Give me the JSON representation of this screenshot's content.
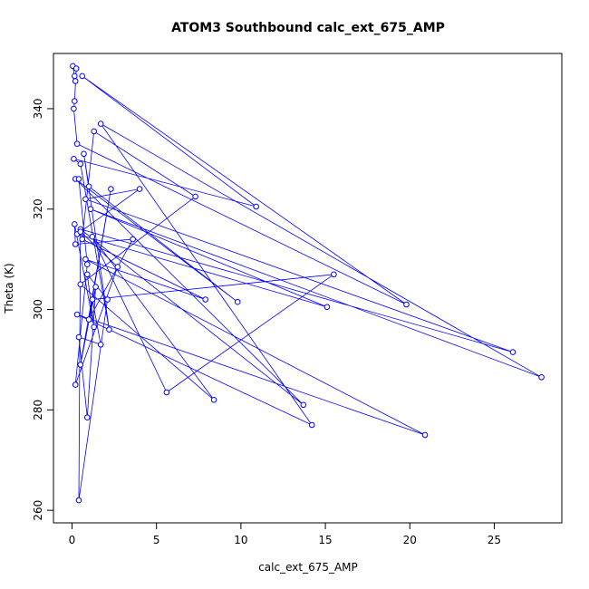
{
  "chart_data": {
    "type": "line",
    "title": "ATOM3 Southbound calc_ext_675_AMP",
    "xlabel": "calc_ext_675_AMP",
    "ylabel": "Theta (K)",
    "xlim": [
      -1.1,
      29.0
    ],
    "ylim": [
      257.5,
      351.0
    ],
    "xticks": [
      "0",
      "5",
      "10",
      "15",
      "20",
      "25"
    ],
    "yticks": [
      "260",
      "280",
      "300",
      "320",
      "340"
    ],
    "grid": false,
    "marker": "open-circle",
    "series_color": "#0000ff",
    "series": [
      {
        "x": [
          0.05,
          0.15,
          0.2,
          0.25,
          0.15,
          0.1,
          0.3,
          19.8,
          0.6,
          10.9,
          0.1,
          0.5,
          2.2,
          0.7,
          1.0,
          9.8,
          0.2,
          13.7,
          0.5,
          26.1,
          0.8,
          4.0,
          0.3,
          15.1,
          1.1,
          27.8,
          1.7,
          14.2,
          0.3,
          20.9,
          0.8,
          7.9,
          0.6,
          1.3,
          7.3,
          0.5,
          8.4,
          1.2,
          5.6,
          15.5,
          1.2,
          1.7,
          0.4,
          0.9,
          1.4,
          0.5,
          2.3,
          1.0,
          3.6,
          0.2,
          0.15,
          1.3,
          0.9,
          2.1,
          0.4,
          0.5,
          2.7,
          0.2,
          0.9,
          0.4
        ],
        "y": [
          348.5,
          346.5,
          345.5,
          348.0,
          341.5,
          340.0,
          333.0,
          301.0,
          346.5,
          320.5,
          330.0,
          329.0,
          296.0,
          331.0,
          324.5,
          301.5,
          326.0,
          281.0,
          316.0,
          291.5,
          322.0,
          324.0,
          315.0,
          300.5,
          320.0,
          286.5,
          337.0,
          277.0,
          299.0,
          275.0,
          310.0,
          302.0,
          314.0,
          335.5,
          322.5,
          305.0,
          282.0,
          314.5,
          283.5,
          307.0,
          302.0,
          293.0,
          294.5,
          278.5,
          304.5,
          289.0,
          324.0,
          298.0,
          314.0,
          313.0,
          317.0,
          296.5,
          307.0,
          302.0,
          262.0,
          315.5,
          308.5,
          285.0,
          309.0,
          326.0
        ]
      }
    ]
  }
}
